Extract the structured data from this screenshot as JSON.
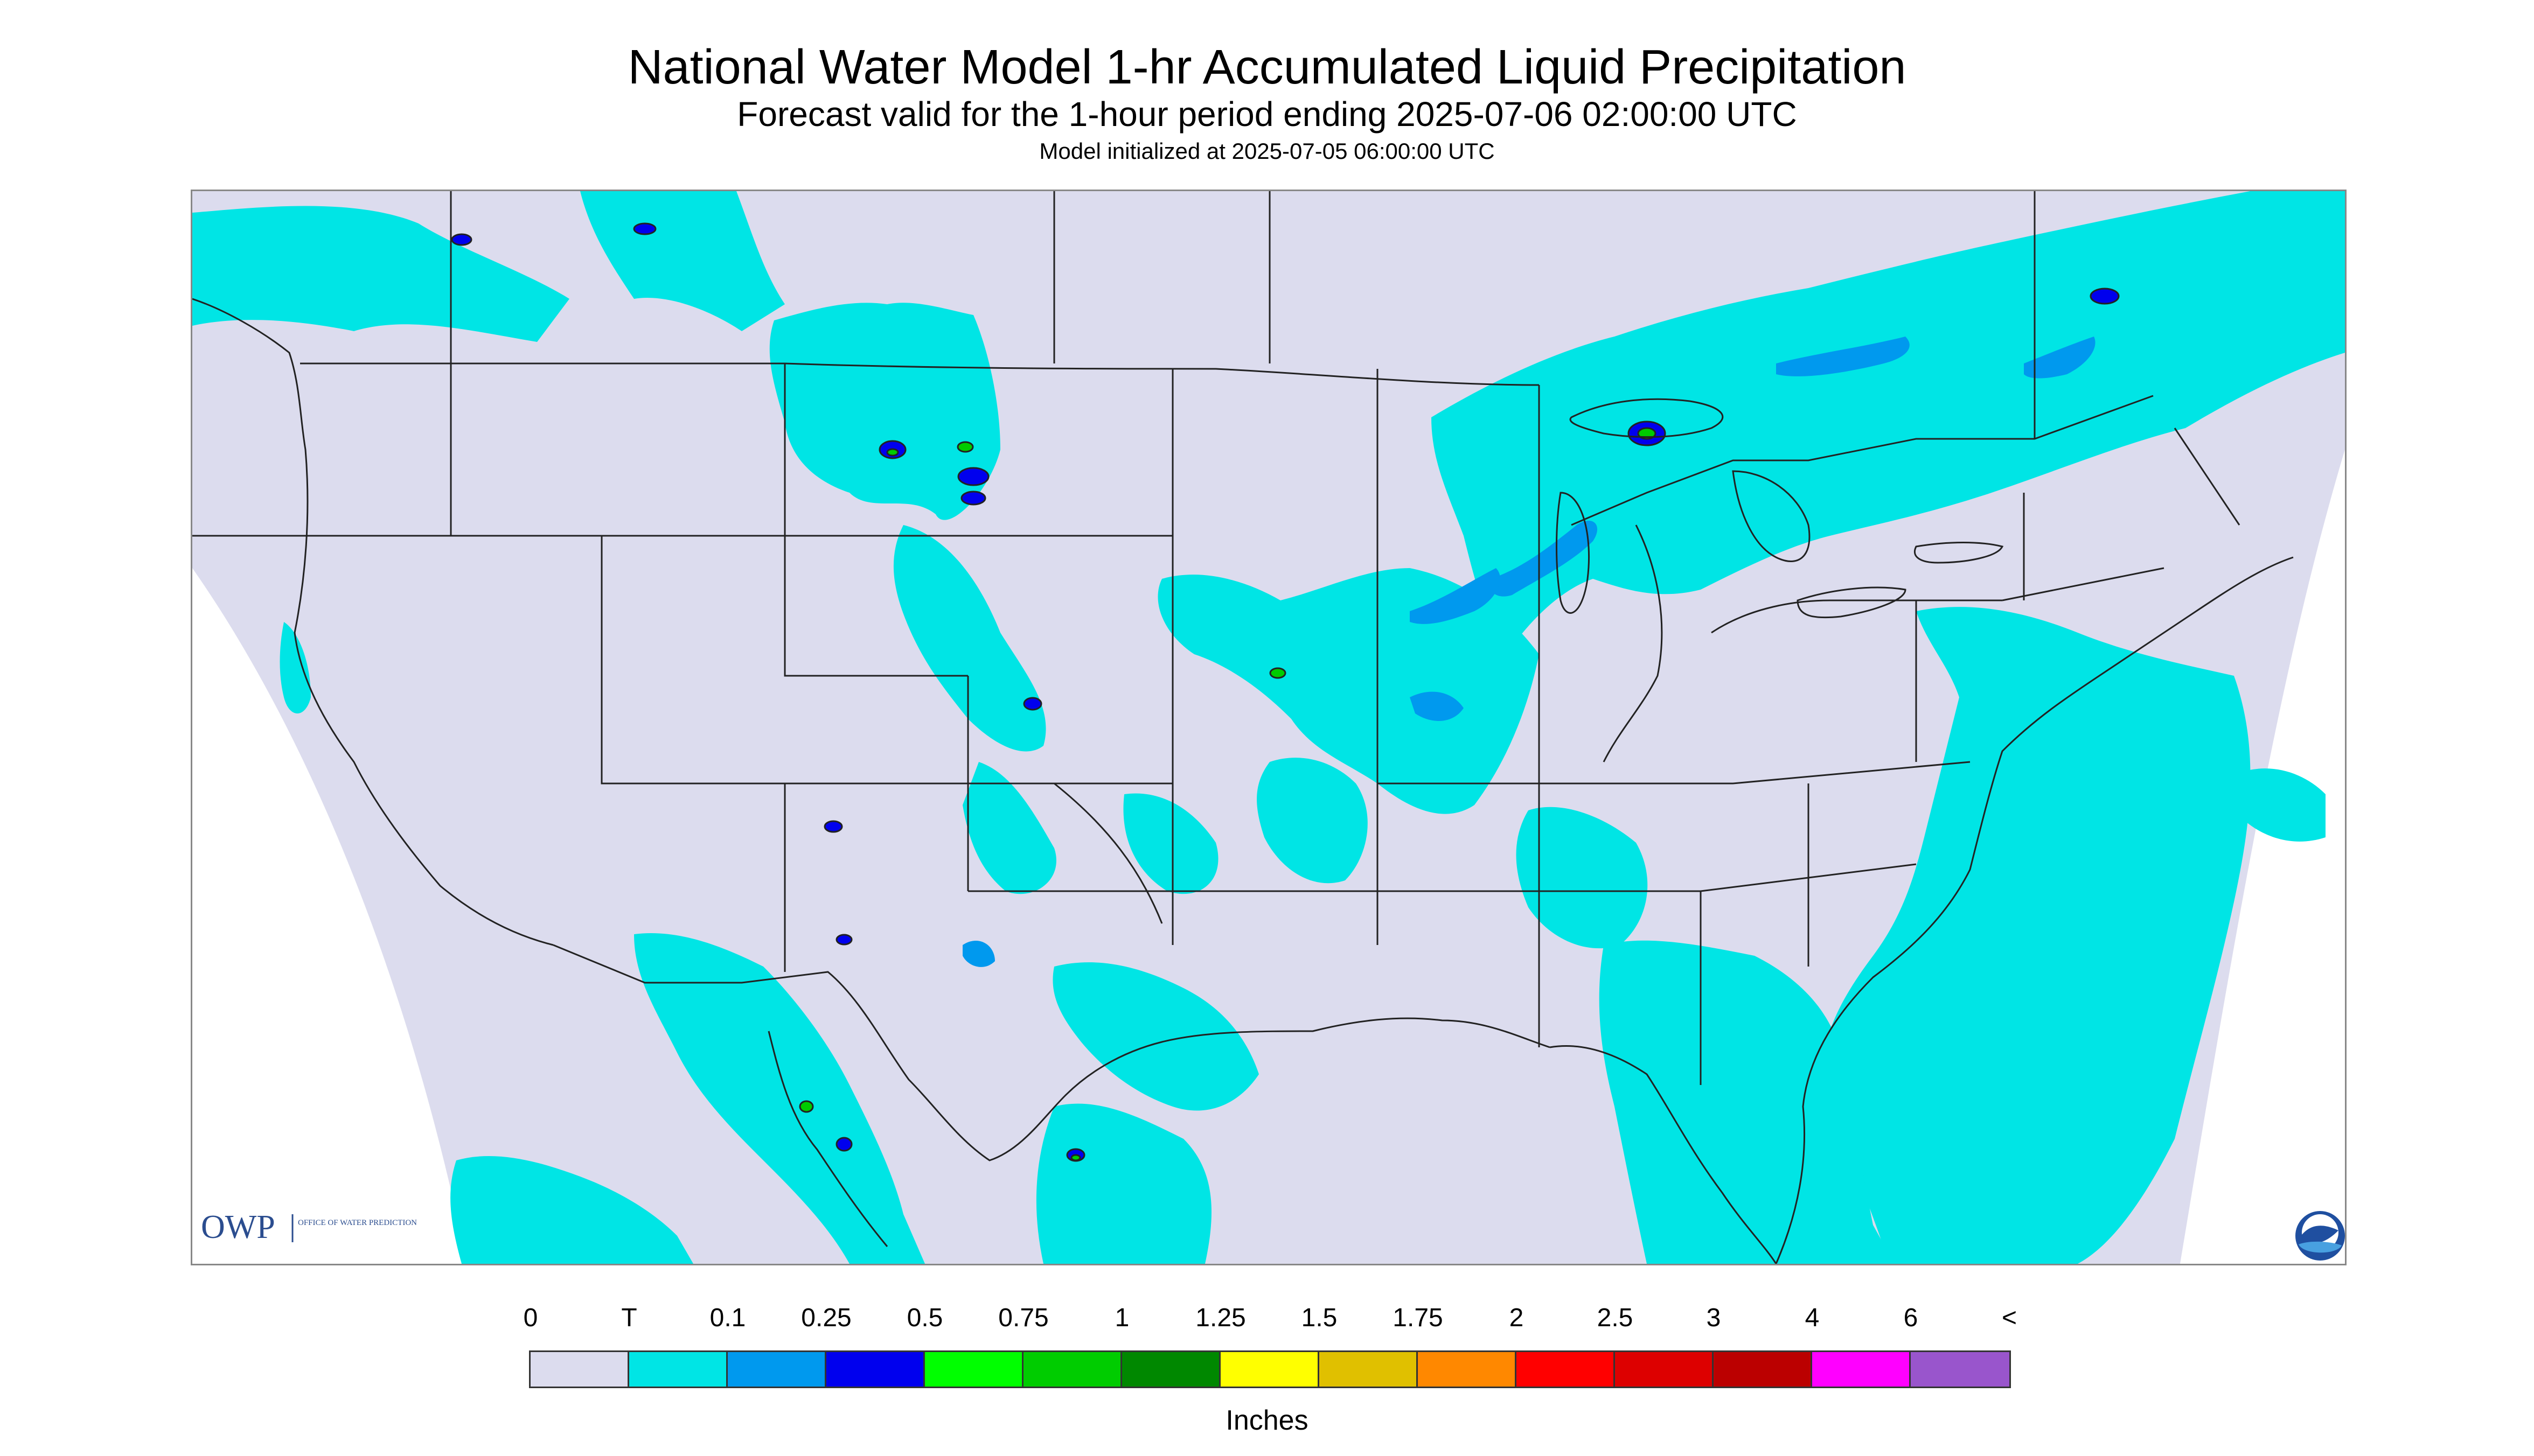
{
  "title": "National Water Model 1-hr Accumulated Liquid Precipitation",
  "subtitle": "Forecast valid for the 1-hour period ending 2025-07-06 02:00:00 UTC",
  "model_init": "Model initialized at 2025-07-05 06:00:00 UTC",
  "map": {
    "background_color": "#dcdcee",
    "outside_color": "#ffffff",
    "border_color": "#222222",
    "precip_colors": {
      "trace": "#00e5e5",
      "light": "#0099ee",
      "moderate": "#0000ee",
      "heavy": "#00cc00"
    },
    "owp_logo": {
      "letters": "OWP",
      "sub_text": "OFFICE OF WATER PREDICTION"
    },
    "noaa_logo": "noaa-logo-icon"
  },
  "legend": {
    "labels": [
      "0",
      "T",
      "0.1",
      "0.25",
      "0.5",
      "0.75",
      "1",
      "1.25",
      "1.5",
      "1.75",
      "2",
      "2.5",
      "3",
      "4",
      "6",
      "<"
    ],
    "colors": [
      "#dcdcee",
      "#00e5e5",
      "#0099ee",
      "#0000ee",
      "#00ff00",
      "#00cc00",
      "#008800",
      "#ffff00",
      "#e0c000",
      "#ff8800",
      "#ff0000",
      "#dd0000",
      "#bb0000",
      "#ff00ff",
      "#9955cc"
    ],
    "units": "Inches"
  }
}
